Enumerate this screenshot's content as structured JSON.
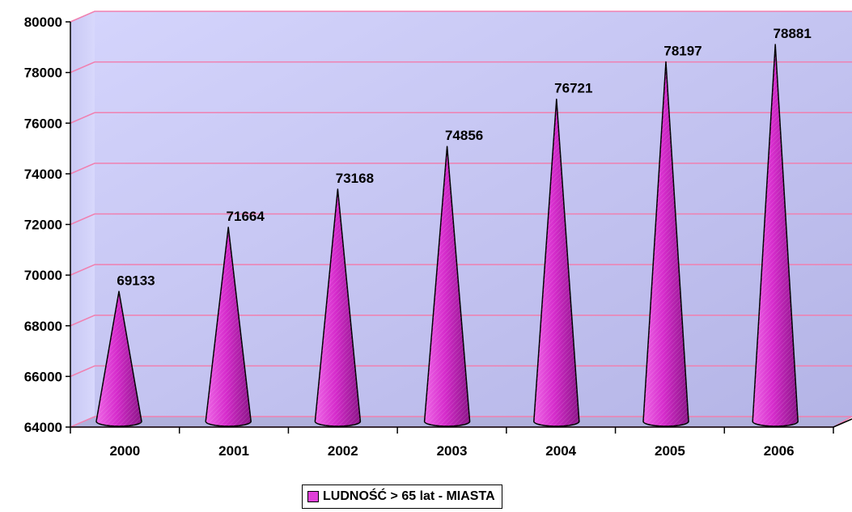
{
  "chart_data": {
    "type": "bar",
    "shape": "cone",
    "categories": [
      "2000",
      "2001",
      "2002",
      "2003",
      "2004",
      "2005",
      "2006"
    ],
    "series": [
      {
        "name": "LUDNOŚĆ > 65 lat - MIASTA",
        "values": [
          69133,
          71664,
          73168,
          74856,
          76721,
          78197,
          78881
        ]
      }
    ],
    "data_labels": [
      "69133",
      "71664",
      "73168",
      "74856",
      "76721",
      "78197",
      "78881"
    ],
    "ylim": [
      64000,
      80000
    ],
    "yticks": [
      "64000",
      "66000",
      "68000",
      "70000",
      "72000",
      "74000",
      "76000",
      "78000",
      "80000"
    ],
    "grid": true,
    "legend_position": "bottom",
    "colors": {
      "bar": "#e040d8",
      "plot_background": "#c8c8f4",
      "gridline": "#f080b0"
    }
  },
  "legend": {
    "label": "LUDNOŚĆ > 65 lat - MIASTA"
  }
}
